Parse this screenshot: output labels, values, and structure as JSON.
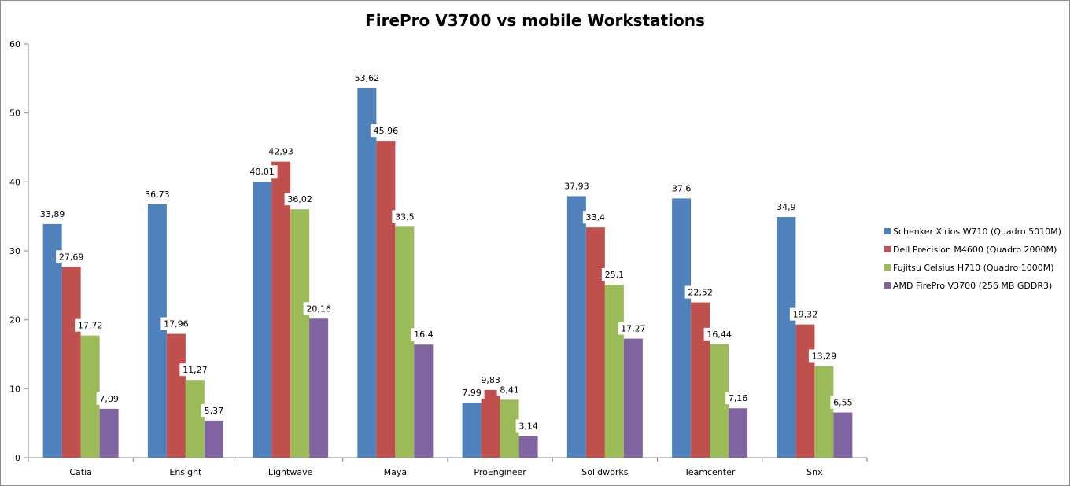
{
  "chart_data": {
    "type": "bar",
    "title": "FirePro V3700 vs mobile Workstations",
    "xlabel": "",
    "ylabel": "",
    "ylim": [
      0,
      60
    ],
    "yticks": [
      0,
      10,
      20,
      30,
      40,
      50,
      60
    ],
    "grid": false,
    "legend_position": "right",
    "categories": [
      "Catia",
      "Ensight",
      "Lightwave",
      "Maya",
      "ProEngineer",
      "Solidworks",
      "Teamcenter",
      "Snx"
    ],
    "series": [
      {
        "name": "Schenker Xirios W710 (Quadro 5010M)",
        "color": "#4F81BD",
        "values": [
          33.89,
          36.73,
          40.01,
          53.62,
          7.99,
          37.93,
          37.6,
          34.9
        ],
        "labels": [
          "33,89",
          "36,73",
          "40,01",
          "53,62",
          "7,99",
          "37,93",
          "37,6",
          "34,9"
        ]
      },
      {
        "name": "Dell Precision M4600 (Quadro 2000M)",
        "color": "#C0504D",
        "values": [
          27.69,
          17.96,
          42.93,
          45.96,
          9.83,
          33.4,
          22.52,
          19.32
        ],
        "labels": [
          "27,69",
          "17,96",
          "42,93",
          "45,96",
          "9,83",
          "33,4",
          "22,52",
          "19,32"
        ]
      },
      {
        "name": "Fujitsu Celsius H710 (Quadro 1000M)",
        "color": "#9BBB59",
        "values": [
          17.72,
          11.27,
          36.02,
          33.5,
          8.41,
          25.1,
          16.44,
          13.29
        ],
        "labels": [
          "17,72",
          "11,27",
          "36,02",
          "33,5",
          "8,41",
          "25,1",
          "16,44",
          "13,29"
        ]
      },
      {
        "name": "AMD FirePro V3700 (256 MB GDDR3)",
        "color": "#8064A2",
        "values": [
          7.09,
          5.37,
          20.16,
          16.4,
          3.14,
          17.27,
          7.16,
          6.55
        ],
        "labels": [
          "7,09",
          "5,37",
          "20,16",
          "16,4",
          "3,14",
          "17,27",
          "7,16",
          "6,55"
        ]
      }
    ]
  }
}
